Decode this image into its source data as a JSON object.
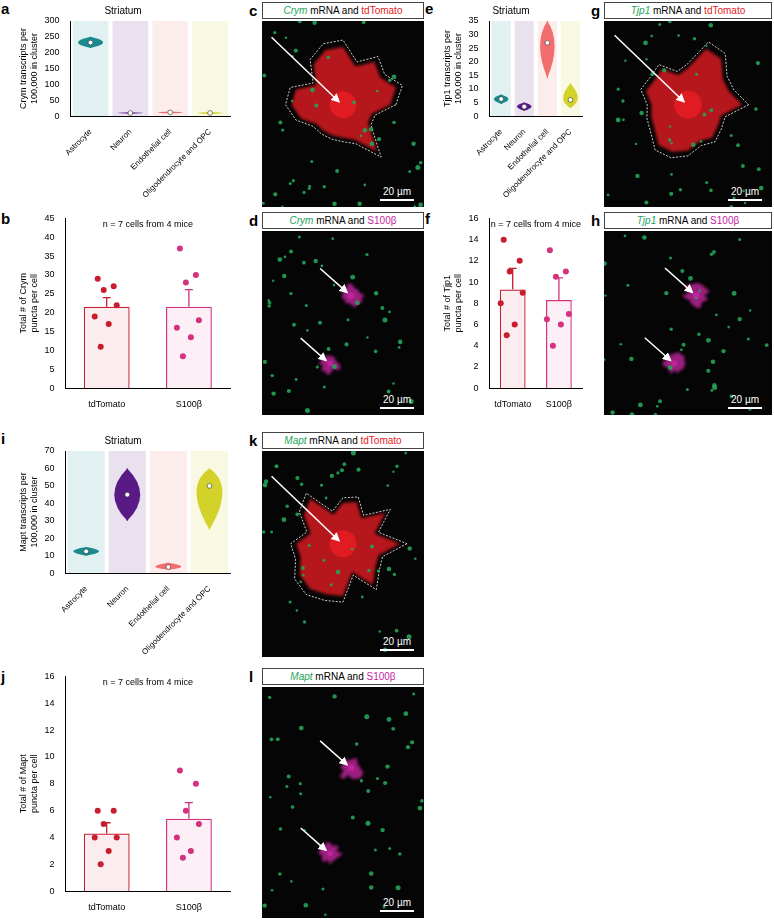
{
  "chart_data": [
    {
      "panel": "a",
      "type": "violin",
      "title": "Striatum",
      "ylabel": "Crym transcripts per 100,000 in cluster",
      "categories": [
        "Astrocyte",
        "Neuron",
        "Endothelial cell",
        "Oligodendrocyte and OPC"
      ],
      "values": [
        232,
        10,
        12,
        10
      ],
      "ranges": [
        [
          215,
          250
        ],
        [
          8,
          12
        ],
        [
          9,
          15
        ],
        [
          7,
          13
        ]
      ],
      "colors": [
        "#1b8a8f",
        "#5a1a86",
        "#f26d6d",
        "#d2d22a"
      ],
      "ylim": [
        0,
        300
      ],
      "yticks": [
        0,
        50,
        100,
        150,
        200,
        250,
        300
      ],
      "grid": false
    },
    {
      "panel": "b",
      "type": "bar",
      "ylabel": "Total # of Crym puncta per cell",
      "annotation": "n = 7 cells from 4 mice",
      "categories": [
        "tdTomato",
        "S100β"
      ],
      "values": [
        21.6,
        21.6
      ],
      "errors": [
        2.4,
        4.5
      ],
      "points": [
        [
          29,
          27,
          26,
          22,
          19,
          17,
          11
        ],
        [
          37,
          30,
          28,
          18,
          16,
          13.5,
          8.5
        ]
      ],
      "colors": [
        "#c81d2e",
        "#d4317e"
      ],
      "ylim": [
        0,
        45
      ],
      "yticks": [
        0,
        5,
        10,
        15,
        20,
        25,
        30,
        35,
        40,
        45
      ],
      "grid": false
    },
    {
      "panel": "e",
      "type": "violin",
      "title": "Striatum",
      "ylabel": "Tjp1 transcripts per 100,000 in cluster",
      "categories": [
        "Astrocyte",
        "Neuron",
        "Endothelial cell",
        "Oligodendrocyte and OPC"
      ],
      "values": [
        6.3,
        3.5,
        27,
        6
      ],
      "ranges": [
        [
          4.5,
          8
        ],
        [
          2,
          5
        ],
        [
          14,
          35
        ],
        [
          3,
          12
        ]
      ],
      "colors": [
        "#1b8a8f",
        "#5a1a86",
        "#f26d6d",
        "#d2d22a"
      ],
      "ylim": [
        0,
        35
      ],
      "yticks": [
        0,
        5,
        10,
        15,
        20,
        25,
        30,
        35
      ],
      "grid": false
    },
    {
      "panel": "f",
      "type": "bar",
      "ylabel": "Total # of Tjp1 puncta per cell",
      "annotation": "n = 7 cells from 4 mice",
      "categories": [
        "tdTomato",
        "S100β"
      ],
      "values": [
        9.3,
        8.3
      ],
      "errors": [
        2.0,
        2.1
      ],
      "points": [
        [
          14,
          12,
          11,
          9,
          8,
          6,
          5
        ],
        [
          13,
          11,
          10.5,
          7,
          6.5,
          6,
          4
        ]
      ],
      "colors": [
        "#c81d2e",
        "#d4317e"
      ],
      "ylim": [
        0,
        16
      ],
      "yticks": [
        0,
        2,
        4,
        6,
        8,
        10,
        12,
        14,
        16
      ],
      "grid": false
    },
    {
      "panel": "i",
      "type": "violin",
      "title": "Striatum",
      "ylabel": "Mapt transcripts per 100,000 in cluster",
      "categories": [
        "Astrocyte",
        "Neuron",
        "Endothelial cell",
        "Oligodendrocyte and OPC"
      ],
      "values": [
        12.5,
        45,
        3.5,
        50
      ],
      "ranges": [
        [
          10,
          15
        ],
        [
          30,
          60
        ],
        [
          2,
          6
        ],
        [
          25,
          60
        ]
      ],
      "colors": [
        "#1b8a8f",
        "#5a1a86",
        "#f26d6d",
        "#d2d22a"
      ],
      "ylim": [
        0,
        70
      ],
      "yticks": [
        0,
        10,
        20,
        30,
        40,
        50,
        60,
        70
      ],
      "grid": false
    },
    {
      "panel": "j",
      "type": "bar",
      "ylabel": "Total # of Mapt puncta per cell",
      "annotation": "n = 7 cells from 4 mice",
      "categories": [
        "tdTomato",
        "S100β"
      ],
      "values": [
        4.3,
        5.4
      ],
      "errors": [
        0.8,
        1.2
      ],
      "points": [
        [
          6,
          6,
          5,
          4,
          4,
          3,
          2
        ],
        [
          9,
          8,
          6,
          5,
          4,
          3,
          2.5
        ]
      ],
      "colors": [
        "#c81d2e",
        "#d4317e"
      ],
      "ylim": [
        0,
        16
      ],
      "yticks": [
        0,
        2,
        4,
        6,
        8,
        10,
        12,
        14,
        16
      ],
      "grid": false
    }
  ],
  "images": [
    {
      "panel": "c",
      "title_parts": [
        {
          "text": "Crym",
          "color": "#22a45a"
        },
        {
          "text": "mRNA and",
          "color": "#000000"
        },
        {
          "text": "tdTomato",
          "color": "#e31b23"
        }
      ],
      "scale_bar": "20 µm"
    },
    {
      "panel": "d",
      "title_parts": [
        {
          "text": "Crym",
          "color": "#22a45a"
        },
        {
          "text": "mRNA and",
          "color": "#000000"
        },
        {
          "text": "S100β",
          "color": "#c2259e"
        }
      ],
      "scale_bar": "20 µm"
    },
    {
      "panel": "g",
      "title_parts": [
        {
          "text": "Tjp1",
          "color": "#22a45a"
        },
        {
          "text": "mRNA and",
          "color": "#000000"
        },
        {
          "text": "tdTomato",
          "color": "#e31b23"
        }
      ],
      "scale_bar": "20 µm"
    },
    {
      "panel": "h",
      "title_parts": [
        {
          "text": "Tjp1",
          "color": "#22a45a"
        },
        {
          "text": "mRNA and",
          "color": "#000000"
        },
        {
          "text": "S100β",
          "color": "#c2259e"
        }
      ],
      "scale_bar": "20 µm"
    },
    {
      "panel": "k",
      "title_parts": [
        {
          "text": "Mapt",
          "color": "#22a45a"
        },
        {
          "text": "mRNA and",
          "color": "#000000"
        },
        {
          "text": "tdTomato",
          "color": "#e31b23"
        }
      ],
      "scale_bar": "20 µm"
    },
    {
      "panel": "l",
      "title_parts": [
        {
          "text": "Mapt",
          "color": "#22a45a"
        },
        {
          "text": "mRNA and",
          "color": "#000000"
        },
        {
          "text": "S100β",
          "color": "#c2259e"
        }
      ],
      "scale_bar": "20 µm"
    }
  ]
}
